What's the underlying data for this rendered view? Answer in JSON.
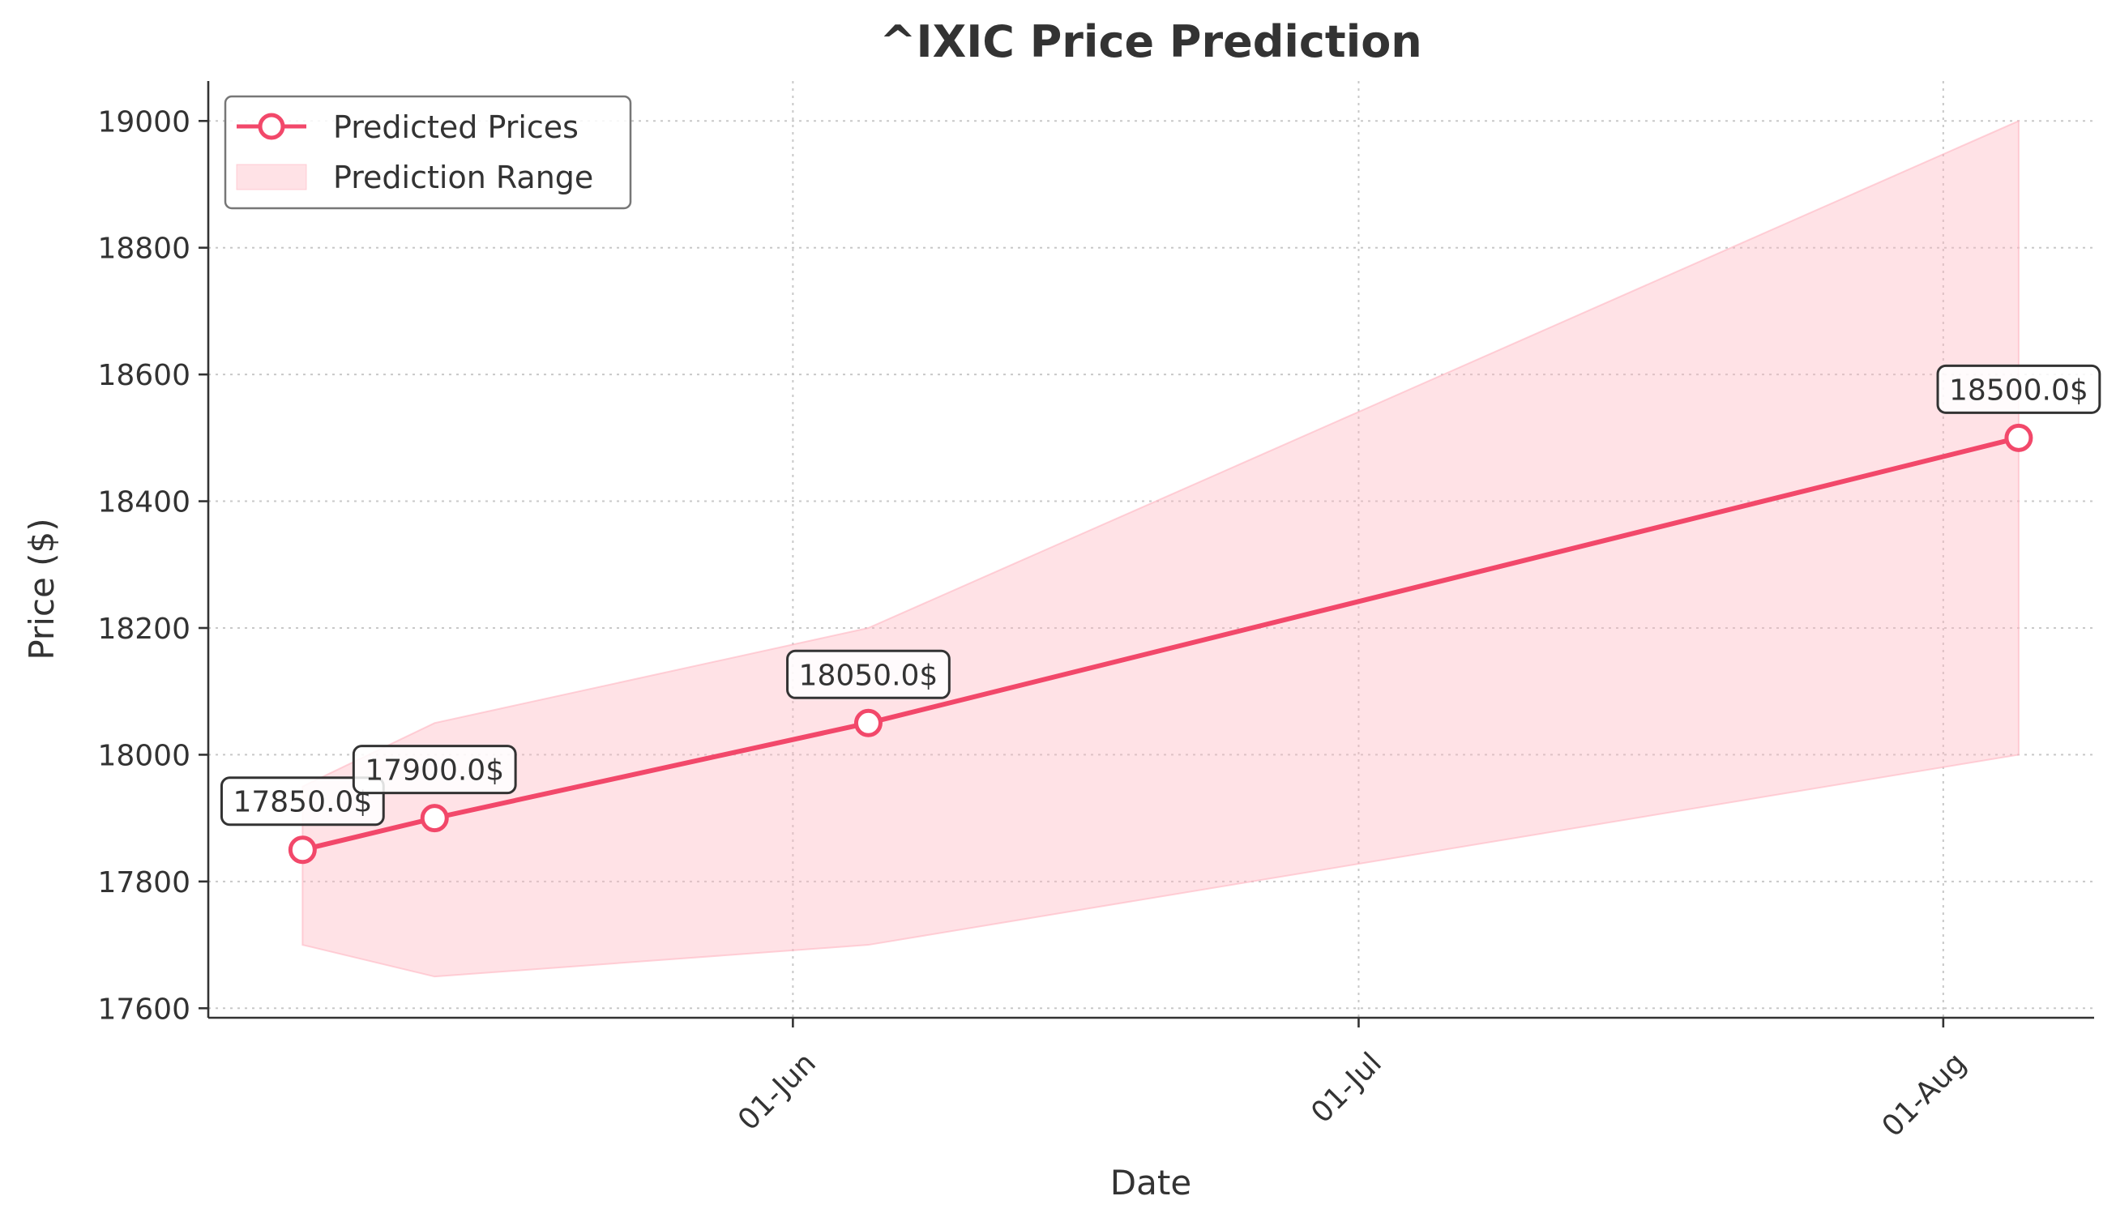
{
  "chart_data": {
    "type": "line",
    "title": "^IXIC Price Prediction",
    "xlabel": "Date",
    "ylabel": "Price ($)",
    "x_ticks": [
      {
        "date": "2024-06-01",
        "label": "01-Jun"
      },
      {
        "date": "2024-07-01",
        "label": "01-Jul"
      },
      {
        "date": "2024-08-01",
        "label": "01-Aug"
      }
    ],
    "y_ticks": [
      17600,
      17800,
      18000,
      18200,
      18400,
      18600,
      18800,
      19000
    ],
    "xlim": [
      "2024-05-01",
      "2024-08-09"
    ],
    "ylim": [
      17585,
      19063
    ],
    "grid": true,
    "legend_position": "top-left",
    "series": [
      {
        "name": "Predicted Prices",
        "type": "line",
        "color": "#f2486a",
        "points": [
          {
            "date": "2024-05-06",
            "value": 17850,
            "label": "17850.0$"
          },
          {
            "date": "2024-05-13",
            "value": 17900,
            "label": "17900.0$"
          },
          {
            "date": "2024-06-05",
            "value": 18050,
            "label": "18050.0$"
          },
          {
            "date": "2024-08-05",
            "value": 18500,
            "label": "18500.0$"
          }
        ]
      },
      {
        "name": "Prediction Range",
        "type": "area",
        "color": "#ffb6c1",
        "points": [
          {
            "date": "2024-05-06",
            "low": 17700,
            "high": 17950
          },
          {
            "date": "2024-05-13",
            "low": 17650,
            "high": 18050
          },
          {
            "date": "2024-06-05",
            "low": 17700,
            "high": 18200
          },
          {
            "date": "2024-08-05",
            "low": 18000,
            "high": 19000
          }
        ]
      }
    ]
  }
}
